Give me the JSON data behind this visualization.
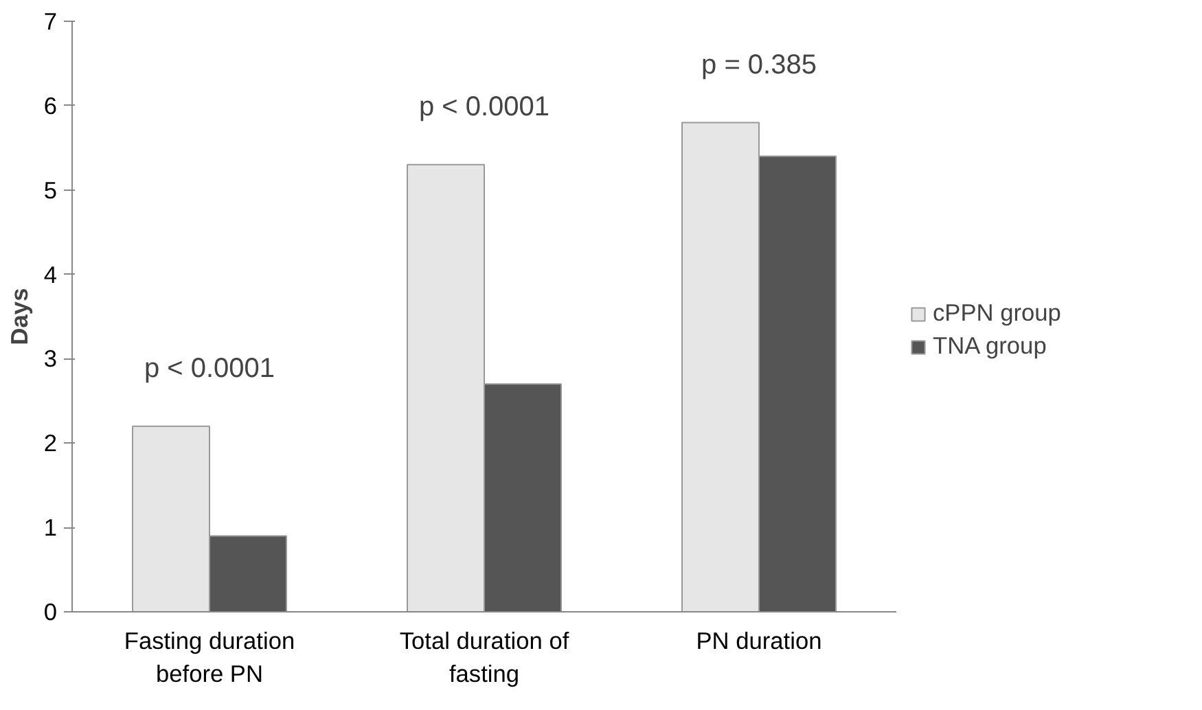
{
  "chart_data": {
    "type": "bar",
    "ylabel": "Days",
    "categories": [
      "Fasting duration before PN",
      "Total duration of fasting",
      "PN duration"
    ],
    "series": [
      {
        "name": "cPPN group",
        "color": "#e6e6e6",
        "values": [
          2.2,
          5.3,
          5.8
        ]
      },
      {
        "name": "TNA group",
        "color": "#555555",
        "values": [
          0.9,
          2.7,
          5.4
        ]
      }
    ],
    "ylim": [
      0,
      7
    ],
    "yticks": [
      0,
      1,
      2,
      3,
      4,
      5,
      6,
      7
    ],
    "grid": false,
    "legend": "right",
    "annotations": [
      "p < 0.0001",
      "p < 0.0001",
      "p = 0.385"
    ]
  }
}
